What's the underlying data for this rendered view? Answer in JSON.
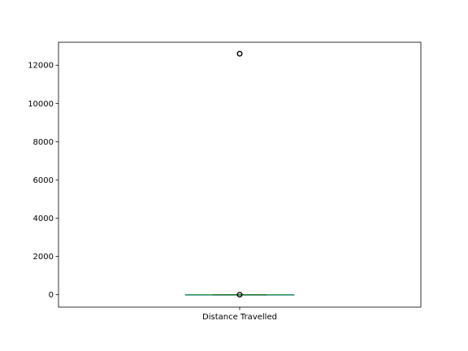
{
  "chart_data": {
    "type": "box",
    "categories": [
      "Distance Travelled"
    ],
    "ylim": [
      -650,
      13200
    ],
    "yticks": [
      0,
      2000,
      4000,
      6000,
      8000,
      10000,
      12000
    ],
    "ytick_labels": [
      "0",
      "2000",
      "4000",
      "6000",
      "8000",
      "10000",
      "12000"
    ],
    "boxes": [
      {
        "category": "Distance Travelled",
        "whisker_low": 0,
        "q1": 0,
        "median": 0,
        "q3": 0,
        "whisker_high": 0,
        "outliers": [
          0,
          12600
        ]
      }
    ],
    "grid": false,
    "colors": {
      "box": "#1f77b4",
      "median": "#2ca02c",
      "outlier": "#000000",
      "axes": "#000000"
    }
  }
}
